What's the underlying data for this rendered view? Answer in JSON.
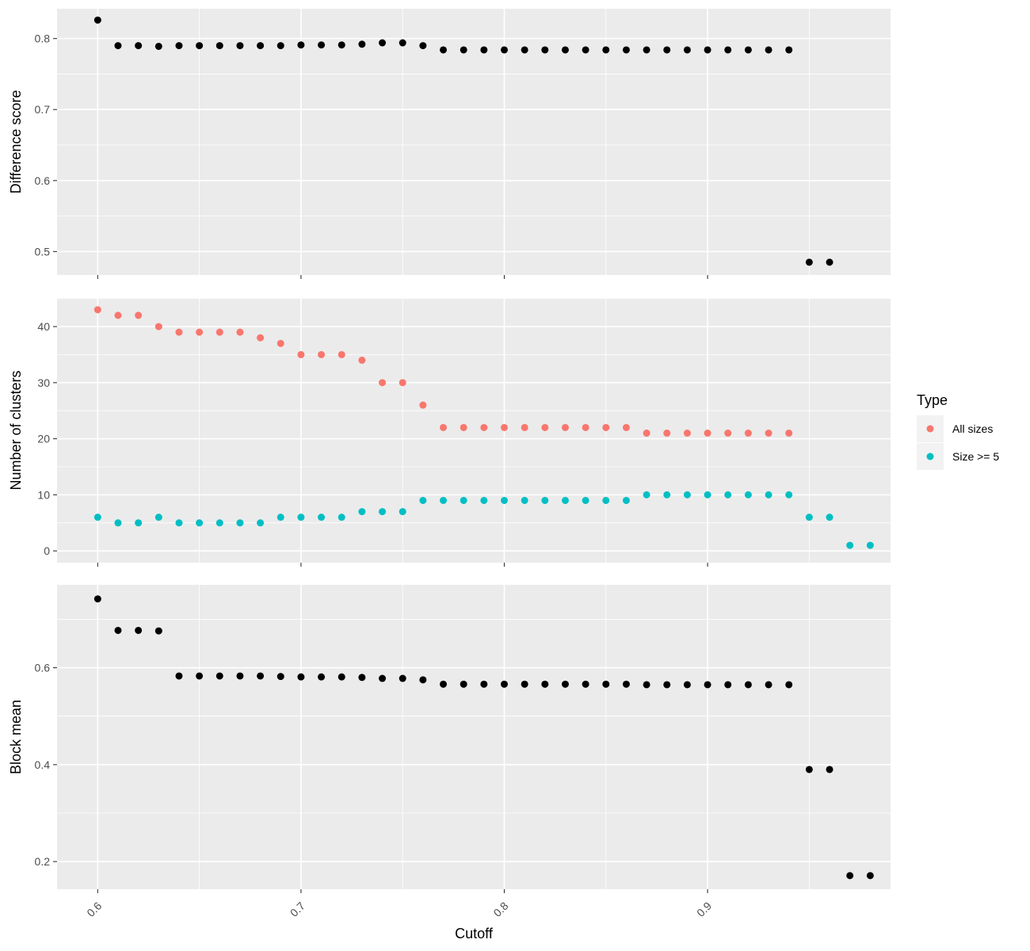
{
  "chart_data": [
    {
      "type": "scatter",
      "panel": "difference",
      "xlabel": "Cutoff",
      "ylabel": "Difference score",
      "xlim": [
        0.58,
        0.99
      ],
      "ylim": [
        0.467,
        0.842
      ],
      "yticks": [
        0.5,
        0.6,
        0.7,
        0.8
      ],
      "ytick_labels": [
        "0.5",
        "0.6",
        "0.7",
        "0.8"
      ],
      "grid": true,
      "series": [
        {
          "color": "#000000",
          "points": [
            [
              0.6,
              0.826
            ],
            [
              0.61,
              0.79
            ],
            [
              0.62,
              0.79
            ],
            [
              0.63,
              0.789
            ],
            [
              0.64,
              0.79
            ],
            [
              0.65,
              0.79
            ],
            [
              0.66,
              0.79
            ],
            [
              0.67,
              0.79
            ],
            [
              0.68,
              0.79
            ],
            [
              0.69,
              0.79
            ],
            [
              0.7,
              0.791
            ],
            [
              0.71,
              0.791
            ],
            [
              0.72,
              0.791
            ],
            [
              0.73,
              0.792
            ],
            [
              0.74,
              0.794
            ],
            [
              0.75,
              0.794
            ],
            [
              0.76,
              0.79
            ],
            [
              0.77,
              0.784
            ],
            [
              0.78,
              0.784
            ],
            [
              0.79,
              0.784
            ],
            [
              0.8,
              0.784
            ],
            [
              0.81,
              0.784
            ],
            [
              0.82,
              0.784
            ],
            [
              0.83,
              0.784
            ],
            [
              0.84,
              0.784
            ],
            [
              0.85,
              0.784
            ],
            [
              0.86,
              0.784
            ],
            [
              0.87,
              0.784
            ],
            [
              0.88,
              0.784
            ],
            [
              0.89,
              0.784
            ],
            [
              0.9,
              0.784
            ],
            [
              0.91,
              0.784
            ],
            [
              0.92,
              0.784
            ],
            [
              0.93,
              0.784
            ],
            [
              0.94,
              0.784
            ],
            [
              0.95,
              0.485
            ],
            [
              0.96,
              0.485
            ]
          ]
        }
      ]
    },
    {
      "type": "scatter",
      "panel": "clusters",
      "xlabel": "Cutoff",
      "ylabel": "Number of clusters",
      "xlim": [
        0.58,
        0.99
      ],
      "ylim": [
        -2.1,
        45.1
      ],
      "yticks": [
        0,
        10,
        20,
        30,
        40
      ],
      "ytick_labels": [
        "0",
        "10",
        "20",
        "30",
        "40"
      ],
      "grid": true,
      "legend": {
        "title": "Type",
        "placement": "right"
      },
      "series": [
        {
          "name": "All sizes",
          "color": "#F8766D",
          "points": [
            [
              0.6,
              43
            ],
            [
              0.61,
              42
            ],
            [
              0.62,
              42
            ],
            [
              0.63,
              40
            ],
            [
              0.64,
              39
            ],
            [
              0.65,
              39
            ],
            [
              0.66,
              39
            ],
            [
              0.67,
              39
            ],
            [
              0.68,
              38
            ],
            [
              0.69,
              37
            ],
            [
              0.7,
              35
            ],
            [
              0.71,
              35
            ],
            [
              0.72,
              35
            ],
            [
              0.73,
              34
            ],
            [
              0.74,
              30
            ],
            [
              0.75,
              30
            ],
            [
              0.76,
              26
            ],
            [
              0.77,
              22
            ],
            [
              0.78,
              22
            ],
            [
              0.79,
              22
            ],
            [
              0.8,
              22
            ],
            [
              0.81,
              22
            ],
            [
              0.82,
              22
            ],
            [
              0.83,
              22
            ],
            [
              0.84,
              22
            ],
            [
              0.85,
              22
            ],
            [
              0.86,
              22
            ],
            [
              0.87,
              21
            ],
            [
              0.88,
              21
            ],
            [
              0.89,
              21
            ],
            [
              0.9,
              21
            ],
            [
              0.91,
              21
            ],
            [
              0.92,
              21
            ],
            [
              0.93,
              21
            ],
            [
              0.94,
              21
            ]
          ]
        },
        {
          "name": "Size >= 5",
          "color": "#00BFC4",
          "points": [
            [
              0.6,
              6
            ],
            [
              0.61,
              5
            ],
            [
              0.62,
              5
            ],
            [
              0.63,
              6
            ],
            [
              0.64,
              5
            ],
            [
              0.65,
              5
            ],
            [
              0.66,
              5
            ],
            [
              0.67,
              5
            ],
            [
              0.68,
              5
            ],
            [
              0.69,
              6
            ],
            [
              0.7,
              6
            ],
            [
              0.71,
              6
            ],
            [
              0.72,
              6
            ],
            [
              0.73,
              7
            ],
            [
              0.74,
              7
            ],
            [
              0.75,
              7
            ],
            [
              0.76,
              9
            ],
            [
              0.77,
              9
            ],
            [
              0.78,
              9
            ],
            [
              0.79,
              9
            ],
            [
              0.8,
              9
            ],
            [
              0.81,
              9
            ],
            [
              0.82,
              9
            ],
            [
              0.83,
              9
            ],
            [
              0.84,
              9
            ],
            [
              0.85,
              9
            ],
            [
              0.86,
              9
            ],
            [
              0.87,
              10
            ],
            [
              0.88,
              10
            ],
            [
              0.89,
              10
            ],
            [
              0.9,
              10
            ],
            [
              0.91,
              10
            ],
            [
              0.92,
              10
            ],
            [
              0.93,
              10
            ],
            [
              0.94,
              10
            ],
            [
              0.95,
              6
            ],
            [
              0.96,
              6
            ],
            [
              0.97,
              1
            ],
            [
              0.98,
              1
            ]
          ]
        }
      ]
    },
    {
      "type": "scatter",
      "panel": "block",
      "xlabel": "Cutoff",
      "ylabel": "Block mean",
      "xlim": [
        0.58,
        0.99
      ],
      "ylim": [
        0.143,
        0.771
      ],
      "yticks": [
        0.2,
        0.4,
        0.6
      ],
      "ytick_labels": [
        "0.2",
        "0.4",
        "0.6"
      ],
      "grid": true,
      "xticks": [
        0.6,
        0.7,
        0.8,
        0.9
      ],
      "xtick_labels": [
        "0.6",
        "0.7",
        "0.8",
        "0.9"
      ],
      "series": [
        {
          "color": "#000000",
          "points": [
            [
              0.6,
              0.742
            ],
            [
              0.61,
              0.677
            ],
            [
              0.62,
              0.677
            ],
            [
              0.63,
              0.676
            ],
            [
              0.64,
              0.583
            ],
            [
              0.65,
              0.583
            ],
            [
              0.66,
              0.583
            ],
            [
              0.67,
              0.583
            ],
            [
              0.68,
              0.583
            ],
            [
              0.69,
              0.582
            ],
            [
              0.7,
              0.581
            ],
            [
              0.71,
              0.581
            ],
            [
              0.72,
              0.581
            ],
            [
              0.73,
              0.58
            ],
            [
              0.74,
              0.578
            ],
            [
              0.75,
              0.578
            ],
            [
              0.76,
              0.575
            ],
            [
              0.77,
              0.566
            ],
            [
              0.78,
              0.566
            ],
            [
              0.79,
              0.566
            ],
            [
              0.8,
              0.566
            ],
            [
              0.81,
              0.566
            ],
            [
              0.82,
              0.566
            ],
            [
              0.83,
              0.566
            ],
            [
              0.84,
              0.566
            ],
            [
              0.85,
              0.566
            ],
            [
              0.86,
              0.566
            ],
            [
              0.87,
              0.565
            ],
            [
              0.88,
              0.565
            ],
            [
              0.89,
              0.565
            ],
            [
              0.9,
              0.565
            ],
            [
              0.91,
              0.565
            ],
            [
              0.92,
              0.565
            ],
            [
              0.93,
              0.565
            ],
            [
              0.94,
              0.565
            ],
            [
              0.95,
              0.39
            ],
            [
              0.96,
              0.39
            ],
            [
              0.97,
              0.171
            ],
            [
              0.98,
              0.171
            ]
          ]
        }
      ]
    }
  ]
}
